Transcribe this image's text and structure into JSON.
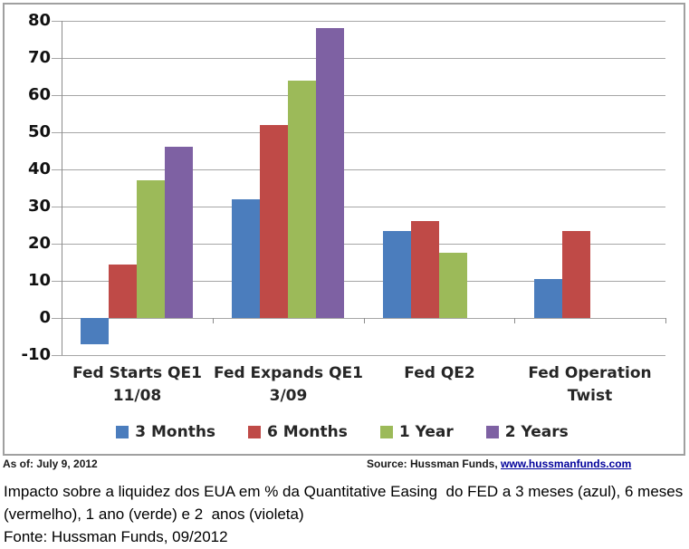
{
  "chart_data": {
    "type": "bar",
    "title": "",
    "categories": [
      "Fed Starts QE1\n11/08",
      "Fed Expands QE1\n3/09",
      "Fed QE2",
      "Fed Operation\nTwist"
    ],
    "series": [
      {
        "name": "3 Months",
        "color": "#4b7dbd",
        "values": [
          -7,
          32,
          23.5,
          10.5
        ]
      },
      {
        "name": "6 Months",
        "color": "#bf4a47",
        "values": [
          14.5,
          52,
          26,
          23.5
        ]
      },
      {
        "name": "1 Year",
        "color": "#9cba59",
        "values": [
          37,
          64,
          17.5,
          null
        ]
      },
      {
        "name": "2 Years",
        "color": "#7e61a3",
        "values": [
          46,
          78,
          null,
          null
        ]
      }
    ],
    "xlabel": "",
    "ylabel": "",
    "ylim": [
      -10,
      80
    ],
    "ytick_step": 10,
    "grid": true,
    "legend_position": "bottom"
  },
  "footer": {
    "as_of": "As of: July 9, 2012",
    "source_prefix": "Source: Hussman Funds, ",
    "source_link": "www.hussmanfunds.com"
  },
  "caption": {
    "text": "Impacto sobre a liquidez dos EUA em % da Quantitative Easing  do FED a 3 meses (azul), 6 meses\n(vermelho), 1 ano (verde) e 2  anos (violeta)",
    "fonte": "Fonte: Hussman Funds, 09/2012"
  }
}
